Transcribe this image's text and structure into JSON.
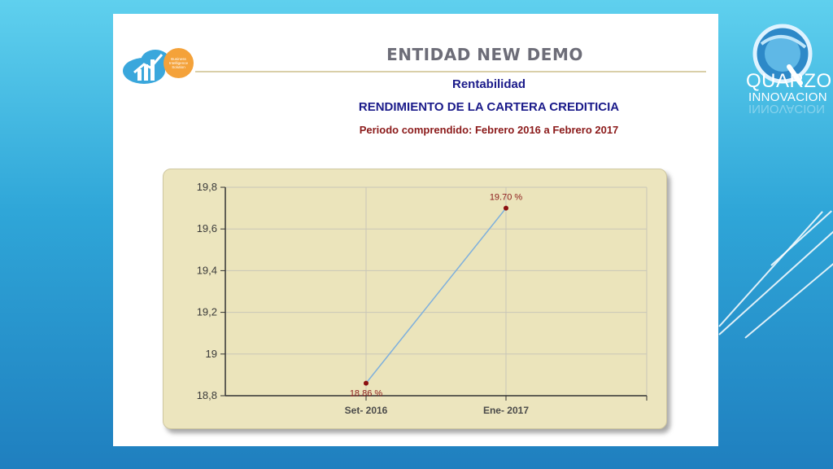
{
  "slide": {
    "entity_title": "ENTIDAD NEW DEMO",
    "section": "Rentabilidad",
    "report_title": "RENDIMIENTO DE LA CARTERA CREDITICIA",
    "period": "Periodo comprendido: Febrero  2016 a Febrero  2017",
    "logo_badge_text": [
      "Business",
      "Intelligence",
      "Solution"
    ]
  },
  "brand": {
    "name": "QUARZO",
    "sub": "INNOVACION"
  },
  "colors": {
    "background_top": "#5fd0ee",
    "background_bottom": "#1f7fbf",
    "title_gray": "#6d6d78",
    "title_navy": "#1b1b8a",
    "period_red": "#8b1a1a",
    "chart_bg": "#ece5be",
    "line": "#7fb0dc",
    "point": "#8b1010"
  },
  "chart_data": {
    "type": "line",
    "categories": [
      "Set- 2016",
      "Ene- 2017"
    ],
    "series": [
      {
        "values": [
          18.86,
          19.7
        ]
      }
    ],
    "data_labels": [
      "18.86 %",
      "19.70 %"
    ],
    "yticks": [
      "19,8",
      "19,6",
      "19,4",
      "19,2",
      "19",
      "18,8"
    ],
    "ylim": [
      18.8,
      19.8
    ],
    "grid": true,
    "title": "",
    "xlabel": "",
    "ylabel": ""
  }
}
